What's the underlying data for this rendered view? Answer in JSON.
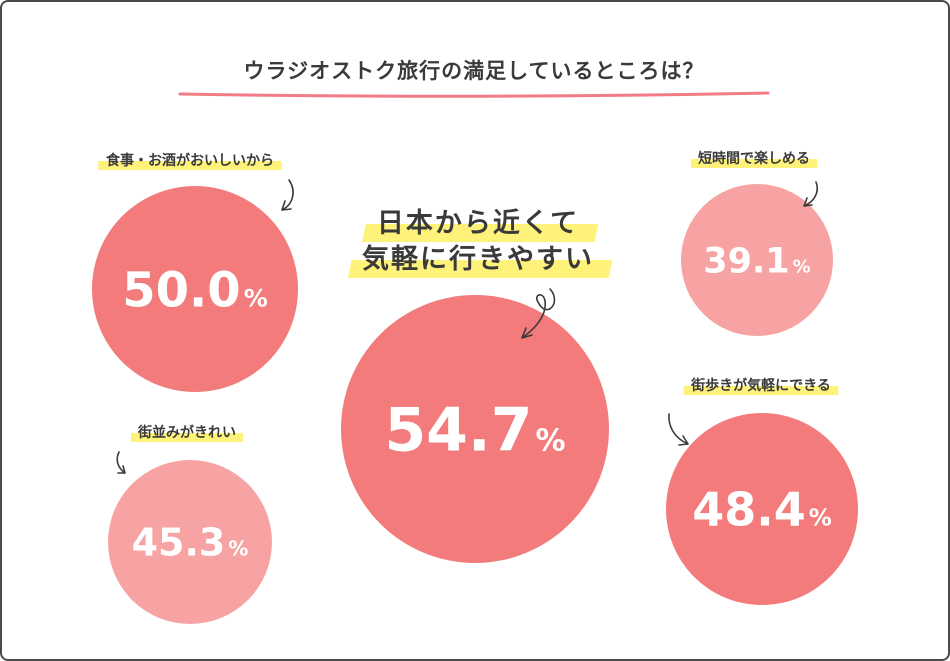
{
  "chart_data": {
    "type": "bubble",
    "title": "ウラジオストク旅行の満足しているところは？",
    "unit": "%",
    "colors": {
      "dark": "#f47b7b",
      "light": "#f7a3a3",
      "underline": "#f27b86",
      "highlight": "#fff27a"
    },
    "items": [
      {
        "label_lines": [
          "日本から近くて",
          "気軽に行きやすい"
        ],
        "value": 54.7,
        "display": "54.7"
      },
      {
        "label_lines": [
          "食事・お酒がおいしいから"
        ],
        "value": 50.0,
        "display": "50.0"
      },
      {
        "label_lines": [
          "街歩きが気軽にできる"
        ],
        "value": 48.4,
        "display": "48.4"
      },
      {
        "label_lines": [
          "街並みがきれい"
        ],
        "value": 45.3,
        "display": "45.3"
      },
      {
        "label_lines": [
          "短時間で楽しめる"
        ],
        "value": 39.1,
        "display": "39.1"
      }
    ]
  }
}
